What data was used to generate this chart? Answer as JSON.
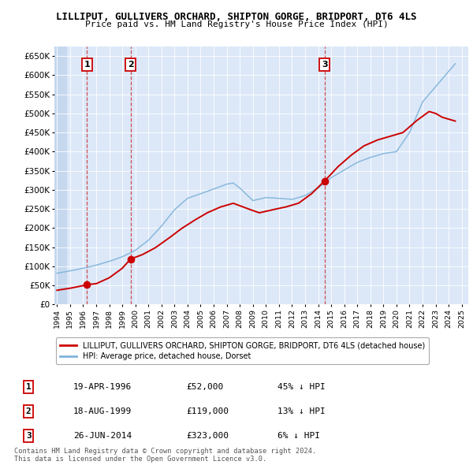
{
  "title": "LILLIPUT, GULLIVERS ORCHARD, SHIPTON GORGE, BRIDPORT, DT6 4LS",
  "subtitle": "Price paid vs. HM Land Registry's House Price Index (HPI)",
  "ylim": [
    0,
    675000
  ],
  "yticks": [
    0,
    50000,
    100000,
    150000,
    200000,
    250000,
    300000,
    350000,
    400000,
    450000,
    500000,
    550000,
    600000,
    650000
  ],
  "ytick_labels": [
    "£0",
    "£50K",
    "£100K",
    "£150K",
    "£200K",
    "£250K",
    "£300K",
    "£350K",
    "£400K",
    "£450K",
    "£500K",
    "£550K",
    "£600K",
    "£650K"
  ],
  "xlim_start": 1993.8,
  "xlim_end": 2025.5,
  "plot_bg_color": "#dce8f8",
  "hatch_start": 1993.8,
  "hatch_end": 1994.75,
  "sale_points": [
    {
      "year": 1996.3,
      "price": 52000,
      "label": "1"
    },
    {
      "year": 1999.63,
      "price": 119000,
      "label": "2"
    },
    {
      "year": 2014.49,
      "price": 323000,
      "label": "3"
    }
  ],
  "vline_years": [
    1996.3,
    1999.63,
    2014.49
  ],
  "red_line_color": "#cc0000",
  "blue_line_color": "#7fb3d9",
  "marker_color": "#cc0000",
  "legend_red_label": "LILLIPUT, GULLIVERS ORCHARD, SHIPTON GORGE, BRIDPORT, DT6 4LS (detached house)",
  "legend_blue_label": "HPI: Average price, detached house, Dorset",
  "table_rows": [
    {
      "num": "1",
      "date": "19-APR-1996",
      "price": "£52,000",
      "pct": "45% ↓ HPI"
    },
    {
      "num": "2",
      "date": "18-AUG-1999",
      "price": "£119,000",
      "pct": "13% ↓ HPI"
    },
    {
      "num": "3",
      "date": "26-JUN-2014",
      "price": "£323,000",
      "pct": "6% ↓ HPI"
    }
  ],
  "footer": "Contains HM Land Registry data © Crown copyright and database right 2024.\nThis data is licensed under the Open Government Licence v3.0."
}
